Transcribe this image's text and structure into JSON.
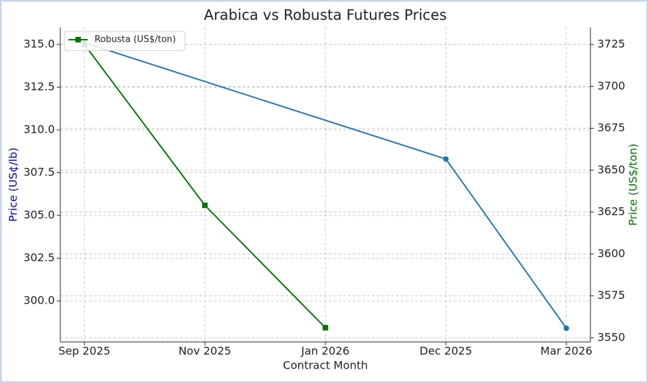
{
  "chart_data": {
    "type": "line",
    "title": "Arabica vs Robusta Futures Prices",
    "x_label": "Contract Month",
    "y_label": "Price (US¢/lb)",
    "y2_label": "Price (US$/ton)",
    "categories": [
      "Sep 2025",
      "Nov 2025",
      "Jan 2026",
      "Dec 2025",
      "Mar 2026"
    ],
    "series": [
      {
        "color": "#1f77b4",
        "marker": "circle",
        "x": [
          "Sep 2025",
          "Dec 2025",
          "Mar 2026"
        ],
        "values": [
          315.1,
          308.3,
          298.4
        ]
      },
      {
        "name": "Robusta (US$/ton)",
        "color": "#007700",
        "marker": "square",
        "axis": "y2",
        "x": [
          "Sep 2025",
          "Nov 2025",
          "Jan 2026"
        ],
        "values": [
          3725,
          3629,
          3556
        ]
      }
    ],
    "ylim": [
      297.6,
      316
    ],
    "yticks": [
      {
        "value": 300,
        "label": "300.0"
      },
      {
        "value": 302.5,
        "label": "302.5"
      },
      {
        "value": 305,
        "label": "305.0"
      },
      {
        "value": 307.5,
        "label": "307.5"
      },
      {
        "value": 310,
        "label": "310.0"
      },
      {
        "value": 312.5,
        "label": "312.5"
      },
      {
        "value": 315,
        "label": "315.0"
      }
    ],
    "y2lim": [
      3547.5,
      3735.2
    ],
    "y2ticks": [
      3550,
      3575,
      3600,
      3625,
      3650,
      3675,
      3700,
      3725
    ],
    "grid": true,
    "legend": "upper left"
  }
}
